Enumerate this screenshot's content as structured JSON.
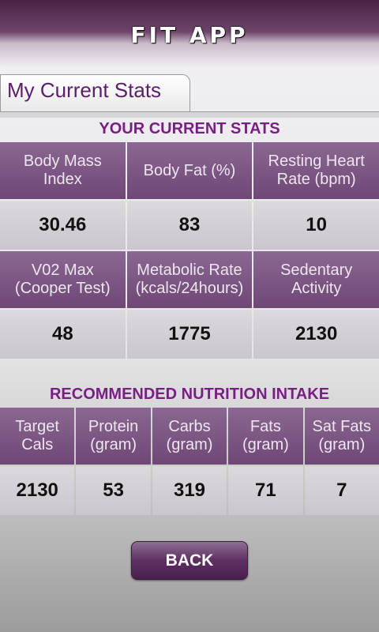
{
  "header": {
    "title": "FIT APP"
  },
  "tab": {
    "label": "My Current Stats"
  },
  "stats": {
    "title": "YOUR CURRENT STATS",
    "cells": [
      {
        "label": [
          "Body Mass",
          "Index"
        ],
        "value": "30.46"
      },
      {
        "label": [
          "Body Fat (%)"
        ],
        "value": "83"
      },
      {
        "label": [
          "Resting Heart",
          "Rate (bpm)"
        ],
        "value": "10"
      },
      {
        "label": [
          "V02 Max",
          "(Cooper Test)"
        ],
        "value": "48"
      },
      {
        "label": [
          "Metabolic Rate",
          "(kcals/24hours)"
        ],
        "value": "1775"
      },
      {
        "label": [
          "Sedentary",
          "Activity"
        ],
        "value": "2130"
      }
    ]
  },
  "nutrition": {
    "title": "RECOMMENDED NUTRITION INTAKE",
    "cells": [
      {
        "label": [
          "Target",
          "Cals"
        ],
        "value": "2130"
      },
      {
        "label": [
          "Protein",
          "(gram)"
        ],
        "value": "53"
      },
      {
        "label": [
          "Carbs",
          "(gram)"
        ],
        "value": "319"
      },
      {
        "label": [
          "Fats",
          "(gram)"
        ],
        "value": "71"
      },
      {
        "label": [
          "Sat Fats",
          "(gram)"
        ],
        "value": "7"
      }
    ]
  },
  "back_button": {
    "label": "BACK"
  }
}
